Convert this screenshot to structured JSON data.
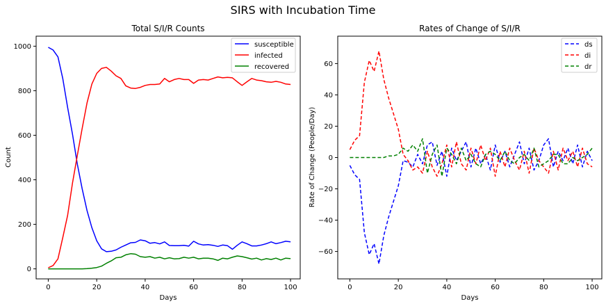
{
  "suptitle": "SIRS with Incubation Time",
  "chart_data": [
    {
      "type": "line",
      "title": "Total S/I/R Counts",
      "xlabel": "Days",
      "ylabel": "Count",
      "xlim": [
        -5,
        104
      ],
      "ylim": [
        -45,
        1045
      ],
      "xticks": [
        0,
        20,
        40,
        60,
        80,
        100
      ],
      "yticks": [
        0,
        200,
        400,
        600,
        800,
        1000
      ],
      "grid": false,
      "legend_position": "top-right",
      "series": [
        {
          "name": "susceptible",
          "color": "#0000ff",
          "linestyle": "solid",
          "x": [
            0,
            2,
            4,
            6,
            8,
            10,
            12,
            14,
            16,
            18,
            20,
            22,
            24,
            26,
            28,
            30,
            32,
            34,
            36,
            38,
            40,
            42,
            44,
            46,
            48,
            50,
            52,
            54,
            56,
            58,
            60,
            62,
            64,
            66,
            68,
            70,
            72,
            74,
            76,
            78,
            80,
            82,
            84,
            86,
            88,
            90,
            92,
            94,
            96,
            98,
            100
          ],
          "y": [
            995,
            983,
            952,
            855,
            725,
            605,
            470,
            360,
            262,
            185,
            126,
            90,
            77,
            79,
            85,
            97,
            107,
            117,
            119,
            130,
            126,
            115,
            118,
            112,
            121,
            105,
            104,
            104,
            106,
            102,
            124,
            112,
            107,
            109,
            106,
            101,
            107,
            104,
            88,
            106,
            121,
            113,
            103,
            103,
            107,
            113,
            121,
            113,
            118,
            124,
            121
          ]
        },
        {
          "name": "infected",
          "color": "#ff0000",
          "linestyle": "solid",
          "x": [
            0,
            2,
            4,
            6,
            8,
            10,
            12,
            14,
            16,
            18,
            20,
            22,
            24,
            26,
            28,
            30,
            32,
            34,
            36,
            38,
            40,
            42,
            44,
            46,
            48,
            50,
            52,
            54,
            56,
            58,
            60,
            62,
            64,
            66,
            68,
            70,
            72,
            74,
            76,
            78,
            80,
            82,
            84,
            86,
            88,
            90,
            92,
            94,
            96,
            98,
            100
          ],
          "y": [
            5,
            15,
            45,
            140,
            240,
            385,
            510,
            630,
            745,
            830,
            878,
            900,
            905,
            888,
            867,
            855,
            822,
            812,
            810,
            815,
            824,
            828,
            828,
            830,
            855,
            840,
            850,
            855,
            850,
            850,
            833,
            848,
            850,
            848,
            855,
            862,
            858,
            860,
            858,
            840,
            824,
            840,
            855,
            848,
            845,
            840,
            838,
            842,
            838,
            830,
            828
          ]
        },
        {
          "name": "recovered",
          "color": "#008000",
          "linestyle": "solid",
          "x": [
            0,
            2,
            4,
            6,
            8,
            10,
            12,
            14,
            16,
            18,
            20,
            22,
            24,
            26,
            28,
            30,
            32,
            34,
            36,
            38,
            40,
            42,
            44,
            46,
            48,
            50,
            52,
            54,
            56,
            58,
            60,
            62,
            64,
            66,
            68,
            70,
            72,
            74,
            76,
            78,
            80,
            82,
            84,
            86,
            88,
            90,
            92,
            94,
            96,
            98,
            100
          ],
          "y": [
            0,
            0,
            0,
            0,
            0,
            0,
            0,
            0,
            1,
            3,
            6,
            12,
            25,
            36,
            50,
            52,
            63,
            68,
            66,
            55,
            52,
            55,
            48,
            52,
            45,
            50,
            45,
            46,
            52,
            48,
            52,
            45,
            48,
            48,
            45,
            38,
            48,
            45,
            52,
            58,
            55,
            50,
            44,
            48,
            40,
            46,
            42,
            48,
            40,
            48,
            46
          ]
        }
      ]
    },
    {
      "type": "line",
      "title": "Rates of Change of S/I/R",
      "xlabel": "Days",
      "ylabel": "Rate of Change (People/Day)",
      "xlim": [
        -5,
        104
      ],
      "ylim": [
        -77.5,
        77.5
      ],
      "xticks": [
        0,
        20,
        40,
        60,
        80,
        100
      ],
      "yticks": [
        -60,
        -40,
        -20,
        0,
        20,
        40,
        60
      ],
      "grid": false,
      "legend_position": "top-right",
      "series": [
        {
          "name": "ds",
          "color": "#0000ff",
          "linestyle": "dashed",
          "x": [
            0,
            2,
            4,
            6,
            8,
            10,
            12,
            14,
            16,
            18,
            20,
            22,
            24,
            26,
            28,
            30,
            32,
            34,
            36,
            38,
            40,
            42,
            44,
            46,
            48,
            50,
            52,
            54,
            56,
            58,
            60,
            62,
            64,
            66,
            68,
            70,
            72,
            74,
            76,
            78,
            80,
            82,
            84,
            86,
            88,
            90,
            92,
            94,
            96,
            98,
            100
          ],
          "y": [
            -5,
            -11,
            -14,
            -48,
            -62,
            -55,
            -68,
            -50,
            -38,
            -28,
            -18,
            -2,
            -3,
            -6,
            2,
            -4,
            8,
            10,
            -5,
            4,
            -12,
            6,
            -2,
            4,
            10,
            -6,
            6,
            -4,
            2,
            -8,
            8,
            -3,
            4,
            -6,
            2,
            10,
            -4,
            6,
            -8,
            -2,
            8,
            12,
            -6,
            4,
            -2,
            6,
            -4,
            8,
            -6,
            4,
            -2
          ]
        },
        {
          "name": "di",
          "color": "#ff0000",
          "linestyle": "dashed",
          "x": [
            0,
            2,
            4,
            6,
            8,
            10,
            12,
            14,
            16,
            18,
            20,
            22,
            24,
            26,
            28,
            30,
            32,
            34,
            36,
            38,
            40,
            42,
            44,
            46,
            48,
            50,
            52,
            54,
            56,
            58,
            60,
            62,
            64,
            66,
            68,
            70,
            72,
            74,
            76,
            78,
            80,
            82,
            84,
            86,
            88,
            90,
            92,
            94,
            96,
            98,
            100
          ],
          "y": [
            5,
            11,
            14,
            48,
            62,
            55,
            68,
            50,
            38,
            28,
            18,
            2,
            -2,
            -8,
            -6,
            -10,
            4,
            -6,
            -12,
            -4,
            8,
            -6,
            10,
            -4,
            -8,
            6,
            -4,
            8,
            -2,
            6,
            -12,
            4,
            -6,
            6,
            -2,
            -8,
            4,
            -10,
            6,
            -2,
            -6,
            -10,
            4,
            -8,
            6,
            -2,
            4,
            -6,
            6,
            -4,
            -6
          ]
        },
        {
          "name": "dr",
          "color": "#008000",
          "linestyle": "dashed",
          "x": [
            0,
            2,
            4,
            6,
            8,
            10,
            12,
            14,
            16,
            18,
            20,
            22,
            24,
            26,
            28,
            30,
            32,
            34,
            36,
            38,
            40,
            42,
            44,
            46,
            48,
            50,
            52,
            54,
            56,
            58,
            60,
            62,
            64,
            66,
            68,
            70,
            72,
            74,
            76,
            78,
            80,
            82,
            84,
            86,
            88,
            90,
            92,
            94,
            96,
            98,
            100
          ],
          "y": [
            0,
            0,
            0,
            0,
            0,
            0,
            0,
            0,
            1,
            1,
            2,
            6,
            4,
            8,
            4,
            12,
            -10,
            2,
            8,
            -12,
            6,
            2,
            -4,
            6,
            -2,
            2,
            -4,
            -6,
            2,
            4,
            2,
            -2,
            4,
            -2,
            -4,
            0,
            2,
            -2,
            6,
            -6,
            -4,
            -2,
            2,
            2,
            -4,
            -4,
            0,
            -2,
            0,
            2,
            6
          ]
        }
      ]
    }
  ]
}
